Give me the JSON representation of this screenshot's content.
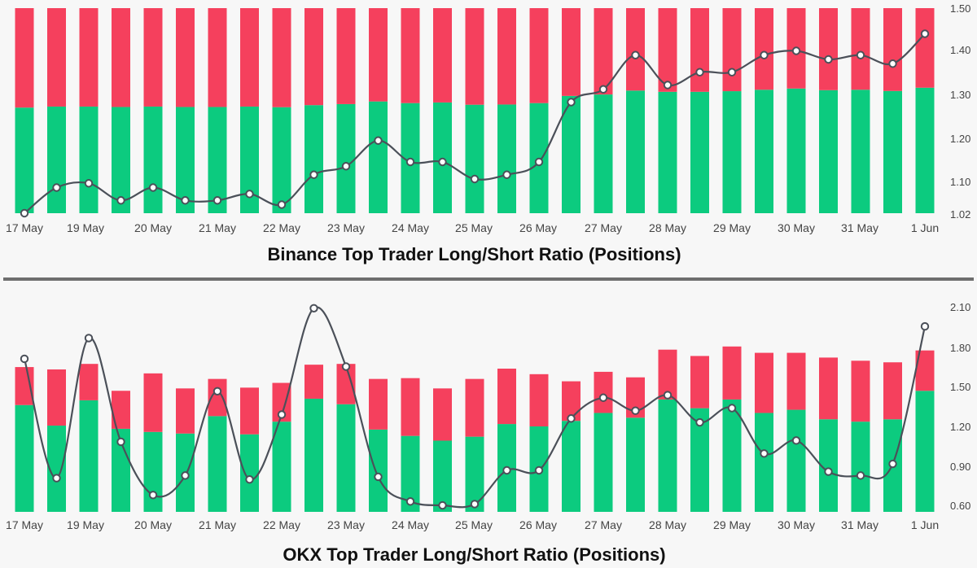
{
  "chart_data": [
    {
      "type": "bar",
      "title": "Binance Top Trader Long/Short Ratio (Positions)",
      "stacked": true,
      "x_tick_labels": [
        "17 May",
        "19 May",
        "20 May",
        "21 May",
        "22 May",
        "23 May",
        "24 May",
        "25 May",
        "26 May",
        "27 May",
        "28 May",
        "29 May",
        "30 May",
        "31 May",
        "1 Jun"
      ],
      "y_right_ticks": [
        "1.50",
        "1.40",
        "1.30",
        "1.20",
        "1.10",
        "1.02"
      ],
      "y_right_values": [
        1.5,
        1.4,
        1.3,
        1.2,
        1.1,
        1.02
      ],
      "bar_scale_percent_range": [
        0,
        100
      ],
      "series": [
        {
          "name": "",
          "kind": "bar",
          "color": "#0ccb7f",
          "values": [
            51.5,
            52,
            52,
            51.8,
            52,
            51.8,
            51.8,
            52,
            51.7,
            52.7,
            53.2,
            54.5,
            53.7,
            54,
            52.9,
            53,
            53.7,
            57.2,
            57.9,
            59.8,
            59.2,
            59.2,
            59.5,
            60.2,
            60.8,
            60,
            60.2,
            59.6,
            61.2
          ]
        },
        {
          "name": "",
          "kind": "bar",
          "color": "#f5405d",
          "values": [
            48.5,
            48,
            48,
            48.2,
            48,
            48.2,
            48.2,
            48,
            48.3,
            47.3,
            46.8,
            45.5,
            46.3,
            46,
            47.1,
            47,
            46.3,
            42.8,
            42.1,
            40.2,
            40.8,
            40.8,
            40.5,
            39.8,
            39.2,
            40,
            39.8,
            40.4,
            38.8
          ]
        },
        {
          "name": "",
          "kind": "line",
          "color": "#4b5059",
          "values": [
            1.02,
            1.08,
            1.09,
            1.05,
            1.08,
            1.05,
            1.05,
            1.065,
            1.04,
            1.11,
            1.13,
            1.19,
            1.14,
            1.14,
            1.1,
            1.11,
            1.14,
            1.28,
            1.31,
            1.39,
            1.32,
            1.35,
            1.35,
            1.39,
            1.4,
            1.38,
            1.39,
            1.37,
            1.44
          ]
        }
      ],
      "ylim": [
        1.02,
        1.5
      ],
      "grid": false
    },
    {
      "type": "bar",
      "title": "OKX Top Trader Long/Short Ratio (Positions)",
      "stacked": true,
      "x_tick_labels": [
        "17 May",
        "19 May",
        "20 May",
        "21 May",
        "22 May",
        "23 May",
        "24 May",
        "25 May",
        "26 May",
        "27 May",
        "28 May",
        "29 May",
        "30 May",
        "31 May",
        "1 Jun"
      ],
      "y_right_ticks": [
        "2.10",
        "1.80",
        "1.50",
        "1.20",
        "0.90",
        "0.60"
      ],
      "y_right_values": [
        2.1,
        1.8,
        1.5,
        1.2,
        0.9,
        0.6
      ],
      "series": [
        {
          "name": "",
          "kind": "bar",
          "color": "#0ccb7f",
          "values": [
            1.35,
            1.09,
            1.41,
            1.05,
            1.01,
            0.99,
            1.21,
            0.98,
            1.14,
            1.43,
            1.36,
            1.04,
            0.96,
            0.9,
            0.95,
            1.11,
            1.08,
            1.15,
            1.25,
            1.19,
            1.42,
            1.31,
            1.42,
            1.25,
            1.29,
            1.17,
            1.14,
            1.17,
            1.53
          ]
        },
        {
          "name": "",
          "kind": "bar",
          "color": "#f5405d",
          "values": [
            0.48,
            0.71,
            0.46,
            0.48,
            0.74,
            0.57,
            0.47,
            0.59,
            0.49,
            0.43,
            0.51,
            0.64,
            0.73,
            0.66,
            0.73,
            0.7,
            0.66,
            0.5,
            0.52,
            0.51,
            0.63,
            0.66,
            0.67,
            0.76,
            0.72,
            0.78,
            0.77,
            0.72,
            0.51
          ]
        },
        {
          "name": "",
          "kind": "line",
          "color": "#4b5059",
          "values": [
            1.68,
            0.76,
            1.84,
            1.04,
            0.63,
            0.78,
            1.43,
            0.75,
            1.25,
            2.07,
            1.62,
            0.77,
            0.58,
            0.55,
            0.56,
            0.82,
            0.82,
            1.22,
            1.38,
            1.28,
            1.4,
            1.19,
            1.3,
            0.95,
            1.05,
            0.81,
            0.78,
            0.87,
            1.93
          ]
        }
      ],
      "ylim": [
        0.5,
        2.1
      ],
      "grid": false
    }
  ]
}
